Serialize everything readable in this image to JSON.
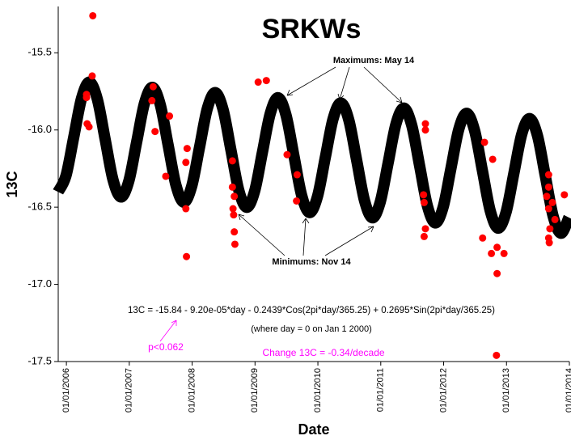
{
  "chart_data": {
    "type": "scatter",
    "title": "SRKWs",
    "x_label": "Date",
    "y_label": "13C",
    "xlim": [
      2005.87,
      2014.0
    ],
    "xticks": [
      {
        "value": 2006,
        "label": "01/01/2006"
      },
      {
        "value": 2007,
        "label": "01/01/2007"
      },
      {
        "value": 2008,
        "label": "01/01/2008"
      },
      {
        "value": 2009,
        "label": "01/01/2009"
      },
      {
        "value": 2010,
        "label": "01/01/2010"
      },
      {
        "value": 2011,
        "label": "01/01/2011"
      },
      {
        "value": 2012,
        "label": "01/01/2012"
      },
      {
        "value": 2013,
        "label": "01/01/2013"
      },
      {
        "value": 2014,
        "label": "01/01/2014"
      }
    ],
    "ylim": [
      -17.5,
      -15.2
    ],
    "yticks": [
      -15.5,
      {
        "value": -16,
        "label": "-16.0"
      },
      -16.5,
      {
        "value": -17,
        "label": "-17.0"
      },
      -17.5
    ],
    "grid": false,
    "series": [
      {
        "type": "line",
        "color": "#000000",
        "x": [
          2005.867,
          2005.992,
          2006.117,
          2006.242,
          2006.367,
          2006.492,
          2006.617,
          2006.742,
          2006.867,
          2006.992,
          2007.117,
          2007.242,
          2007.367,
          2007.492,
          2007.617,
          2007.742,
          2007.867,
          2007.992,
          2008.117,
          2008.242,
          2008.367,
          2008.492,
          2008.617,
          2008.742,
          2008.867,
          2008.992,
          2009.117,
          2009.242,
          2009.367,
          2009.492,
          2009.617,
          2009.742,
          2009.867,
          2009.992,
          2010.117,
          2010.242,
          2010.367,
          2010.492,
          2010.617,
          2010.742,
          2010.867,
          2010.992,
          2011.117,
          2011.242,
          2011.367,
          2011.492,
          2011.617,
          2011.742,
          2011.867,
          2011.992,
          2012.117,
          2012.242,
          2012.367,
          2012.492,
          2012.617,
          2012.742,
          2012.867,
          2012.992,
          2013.117,
          2013.242,
          2013.367,
          2013.492,
          2013.617,
          2013.742,
          2013.867,
          2013.992
        ],
        "values": [
          -16.401,
          -16.298,
          -16.046,
          -15.793,
          -15.69,
          -15.801,
          -16.062,
          -16.324,
          -16.434,
          -16.332,
          -16.079,
          -15.826,
          -15.724,
          -15.835,
          -16.096,
          -16.357,
          -16.468,
          -16.366,
          -16.113,
          -15.86,
          -15.758,
          -15.868,
          -16.13,
          -16.391,
          -16.501,
          -16.399,
          -16.146,
          -15.894,
          -15.791,
          -15.902,
          -16.163,
          -16.424,
          -16.535,
          -16.433,
          -16.18,
          -15.927,
          -15.825,
          -15.936,
          -16.197,
          -16.458,
          -16.569,
          -16.466,
          -16.214,
          -15.961,
          -15.858,
          -15.969,
          -16.23,
          -16.492,
          -16.602,
          -16.5,
          -16.247,
          -15.994,
          -15.892,
          -16.003,
          -16.264,
          -16.525,
          -16.636,
          -16.534,
          -16.281,
          -16.028,
          -15.926,
          -16.036,
          -16.298,
          -16.559,
          -16.669,
          -16.567
        ]
      },
      {
        "type": "scatter",
        "color": "#ff0000",
        "x": [
          2006.42,
          2006.41,
          2006.32,
          2006.32,
          2006.33,
          2006.36,
          2007.38,
          2007.36,
          2007.41,
          2007.64,
          2007.58,
          2007.92,
          2007.9,
          2007.9,
          2007.91,
          2008.64,
          2008.64,
          2008.67,
          2008.65,
          2008.66,
          2008.67,
          2008.68,
          2009.05,
          2009.18,
          2009.51,
          2009.67,
          2009.66,
          2011.71,
          2011.71,
          2011.68,
          2011.69,
          2011.71,
          2011.69,
          2012.65,
          2012.78,
          2012.62,
          2012.76,
          2012.85,
          2012.85,
          2012.84,
          2012.96,
          2013.67,
          2013.67,
          2013.64,
          2013.67,
          2013.69,
          2013.67,
          2013.68,
          2013.77,
          2013.92,
          2013.73
        ],
        "values": [
          -15.26,
          -15.65,
          -15.77,
          -15.79,
          -15.96,
          -15.98,
          -15.72,
          -15.81,
          -16.01,
          -15.91,
          -16.3,
          -16.12,
          -16.21,
          -16.51,
          -16.82,
          -16.2,
          -16.37,
          -16.43,
          -16.51,
          -16.55,
          -16.66,
          -16.74,
          -15.69,
          -15.68,
          -16.16,
          -16.29,
          -16.46,
          -15.96,
          -16.0,
          -16.42,
          -16.47,
          -16.64,
          -16.69,
          -16.08,
          -16.19,
          -16.7,
          -16.8,
          -16.76,
          -16.93,
          -17.46,
          -16.8,
          -16.29,
          -16.37,
          -16.43,
          -16.51,
          -16.64,
          -16.7,
          -16.73,
          -16.58,
          -16.42,
          -16.47
        ]
      }
    ],
    "annotations": [
      "Maximums: May 14",
      "Minimums: Nov 14",
      "13C = -15.84 - 9.20e-05*day - 0.2439*Cos(2pi*day/365.25) + 0.2695*Sin(2pi*day/365.25)",
      "(where day = 0 on Jan 1 2000)",
      "p<0.062",
      "Change 13C = -0.34/decade"
    ]
  }
}
